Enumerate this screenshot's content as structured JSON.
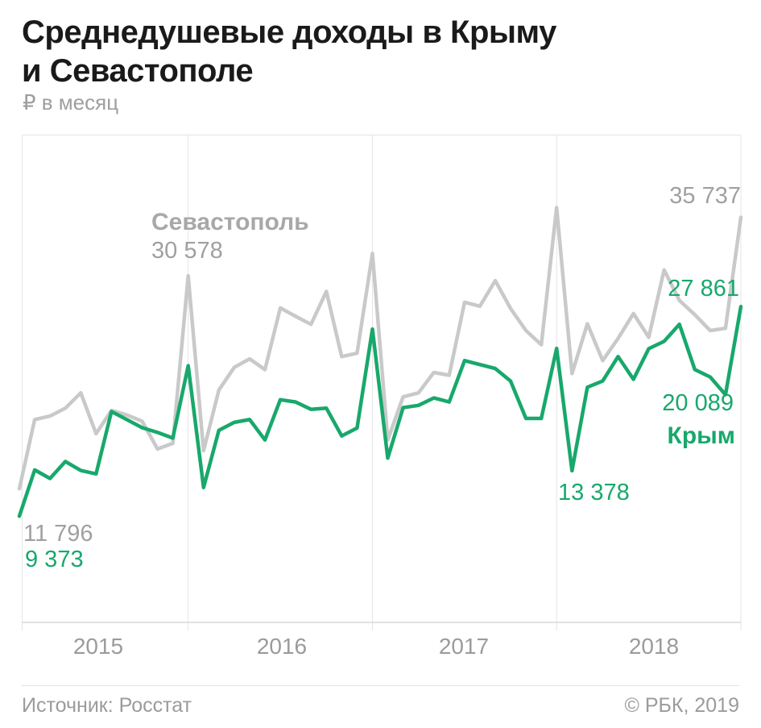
{
  "header": {
    "title_lines": [
      "Среднедушевые доходы в Крыму",
      "и Севастополе"
    ],
    "subtitle": "₽ в месяц"
  },
  "colors": {
    "green": "#18a86c",
    "gray_line": "#c9c9c9",
    "gray_label_bold": "#a8a8a8",
    "gray_label": "#a0a0a0",
    "grid": "#e4e4e4",
    "axis_line": "#d9d9d9",
    "title": "#1a1a1a",
    "muted_text": "#9b9b9b"
  },
  "chart_data": {
    "type": "line",
    "x_unit": "month",
    "x_range": [
      "2015-01",
      "2018-12"
    ],
    "x_tick_labels": [
      "2015",
      "2016",
      "2017",
      "2018"
    ],
    "ylabel": "₽ в месяц",
    "ylim": [
      0,
      43000
    ],
    "grid": "vertical lines at each December / year boundary",
    "legend_position": "labels on chart",
    "series": [
      {
        "name": "Севастополь",
        "color": "#c9c9c9",
        "values": [
          11796,
          17900,
          18200,
          18900,
          20250,
          16650,
          18700,
          18300,
          17750,
          15300,
          15800,
          30578,
          15150,
          20500,
          22500,
          23250,
          22300,
          27750,
          27000,
          26300,
          29200,
          23450,
          23750,
          32550,
          16100,
          19900,
          20250,
          22050,
          21800,
          28250,
          27900,
          30150,
          27700,
          25750,
          24500,
          36600,
          21950,
          26350,
          23100,
          25050,
          27250,
          25150,
          31100,
          28400,
          27150,
          25750,
          25950,
          35737
        ]
      },
      {
        "name": "Крым",
        "color": "#18a86c",
        "values": [
          9373,
          13450,
          12700,
          14200,
          13400,
          13100,
          18600,
          17900,
          17180,
          16760,
          16260,
          22650,
          11900,
          16950,
          17650,
          17900,
          16100,
          19650,
          19450,
          18800,
          18900,
          16450,
          17150,
          25880,
          14500,
          18950,
          19150,
          19800,
          19450,
          23100,
          22750,
          22400,
          21300,
          18000,
          18000,
          24170,
          13378,
          20750,
          21300,
          23450,
          21450,
          24150,
          24800,
          26300,
          22310,
          21650,
          20089,
          27861
        ]
      }
    ],
    "annotations": [
      {
        "series": "Севастополь",
        "point": "2015-01",
        "label": "11 796"
      },
      {
        "series": "Крым",
        "point": "2015-01",
        "label": "9 373"
      },
      {
        "series": "Севастополь",
        "point": "2015-12",
        "label": "30 578"
      },
      {
        "series": "Крым",
        "point": "2018-01",
        "label": "13 378"
      },
      {
        "series": "Крым",
        "point": "2018-11",
        "label": "20 089"
      },
      {
        "series": "Севастополь",
        "point": "2018-12",
        "label": "35 737"
      },
      {
        "series": "Крым",
        "point": "2018-12",
        "label": "27 861"
      }
    ]
  },
  "labels": {
    "sevastopol_name": "Севастополь",
    "sevastopol_dec2015": "30 578",
    "sevastopol_first": "11 796",
    "sevastopol_last": "35 737",
    "crimea_name": "Крым",
    "crimea_first": "9 373",
    "crimea_jan2018": "13 378",
    "crimea_nov2018": "20 089",
    "crimea_last": "27 861"
  },
  "footer": {
    "source": "Источник: Росстат",
    "copyright": "© РБК, 2019"
  }
}
